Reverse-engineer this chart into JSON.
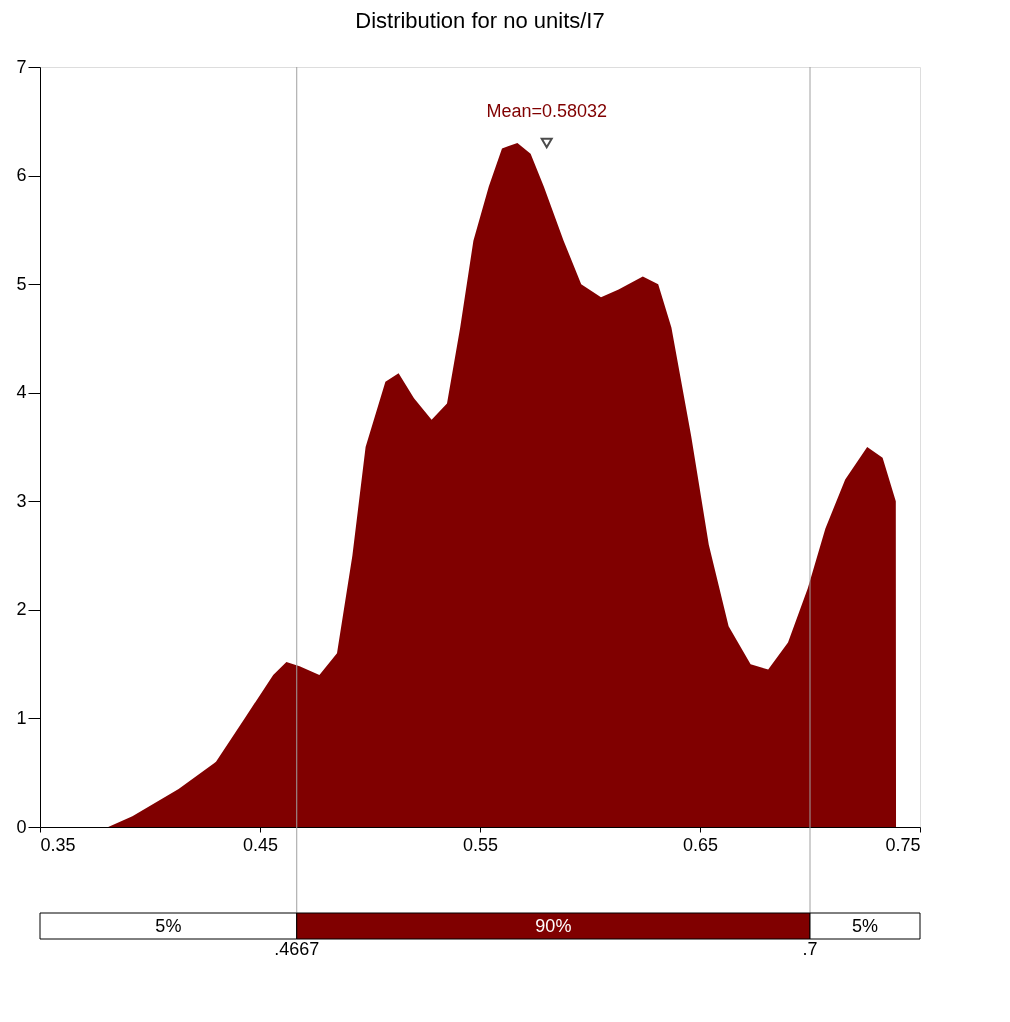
{
  "chart_data": {
    "type": "area",
    "title": "Distribution for no units/I7",
    "x": [
      0.35,
      0.381,
      0.392,
      0.413,
      0.43,
      0.443,
      0.456,
      0.462,
      0.468,
      0.477,
      0.485,
      0.492,
      0.498,
      0.507,
      0.513,
      0.52,
      0.528,
      0.535,
      0.541,
      0.547,
      0.554,
      0.56,
      0.567,
      0.573,
      0.579,
      0.588,
      0.596,
      0.605,
      0.613,
      0.624,
      0.631,
      0.637,
      0.646,
      0.654,
      0.663,
      0.673,
      0.681,
      0.69,
      0.699,
      0.707,
      0.716,
      0.726,
      0.733,
      0.739,
      0.7391
    ],
    "values": [
      0,
      0,
      0.1,
      0.35,
      0.6,
      1.0,
      1.4,
      1.52,
      1.48,
      1.4,
      1.6,
      2.5,
      3.5,
      4.1,
      4.18,
      3.95,
      3.75,
      3.9,
      4.6,
      5.4,
      5.9,
      6.25,
      6.3,
      6.2,
      5.9,
      5.4,
      5.0,
      4.88,
      4.95,
      5.07,
      5.0,
      4.6,
      3.6,
      2.6,
      1.85,
      1.5,
      1.45,
      1.7,
      2.2,
      2.75,
      3.2,
      3.5,
      3.4,
      3.0,
      0
    ],
    "color": "#800000",
    "xlim": [
      0.35,
      0.75
    ],
    "xticks": [
      0.35,
      0.45,
      0.55,
      0.65,
      0.75
    ],
    "ylim": [
      0,
      7
    ],
    "yticks": [
      0,
      1,
      2,
      3,
      4,
      5,
      6,
      7
    ],
    "grid": false,
    "ref_lines": [
      {
        "axis": "x",
        "value": 0.4667,
        "label": ".4667",
        "color": "#a0a0a0"
      },
      {
        "axis": "x",
        "value": 0.7,
        "label": ".7",
        "color": "#a0a0a0"
      }
    ],
    "annotations": [
      {
        "text": "Mean=0.58032",
        "x": 0.58032,
        "y": 6.3
      },
      "5%",
      "90%",
      "5%"
    ]
  }
}
